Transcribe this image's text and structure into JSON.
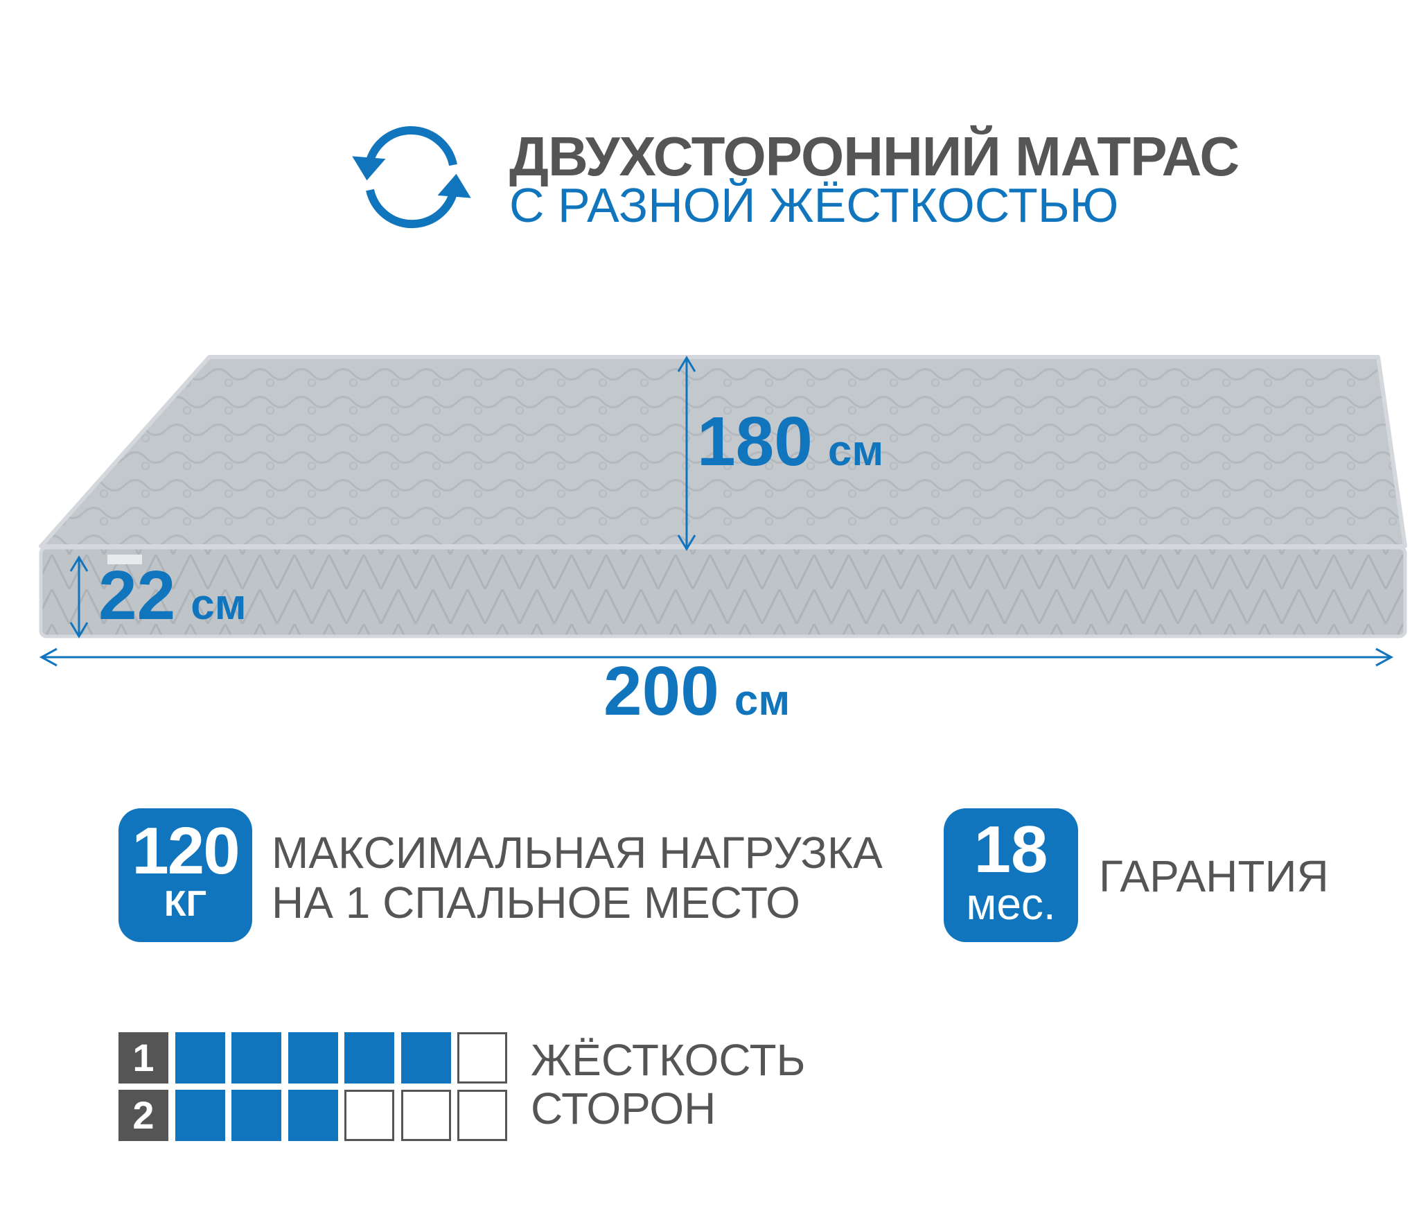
{
  "header": {
    "icon": "refresh-icon",
    "title": "ДВУХСТОРОННИЙ МАТРАС",
    "subtitle": "С РАЗНОЙ ЖЁСТКОСТЬЮ"
  },
  "dimensions": {
    "width": {
      "value": "180",
      "unit": "см"
    },
    "height": {
      "value": "22",
      "unit": "см"
    },
    "length": {
      "value": "200",
      "unit": "см"
    }
  },
  "features": {
    "load": {
      "value": "120",
      "unit": "КГ",
      "line1": "МАКСИМАЛЬНАЯ НАГРУЗКА",
      "line2": "НА 1 СПАЛЬНОЕ МЕСТО"
    },
    "warranty": {
      "value": "18",
      "unit": "мес.",
      "label": "ГАРАНТИЯ"
    }
  },
  "hardness": {
    "label1": "ЖЁСТКОСТЬ",
    "label2": "СТОРОН",
    "scale_max": 6,
    "sides": [
      {
        "side": "1",
        "level": 5
      },
      {
        "side": "2",
        "level": 3
      }
    ]
  },
  "colors": {
    "accent": "#1175be",
    "text": "#555555"
  }
}
